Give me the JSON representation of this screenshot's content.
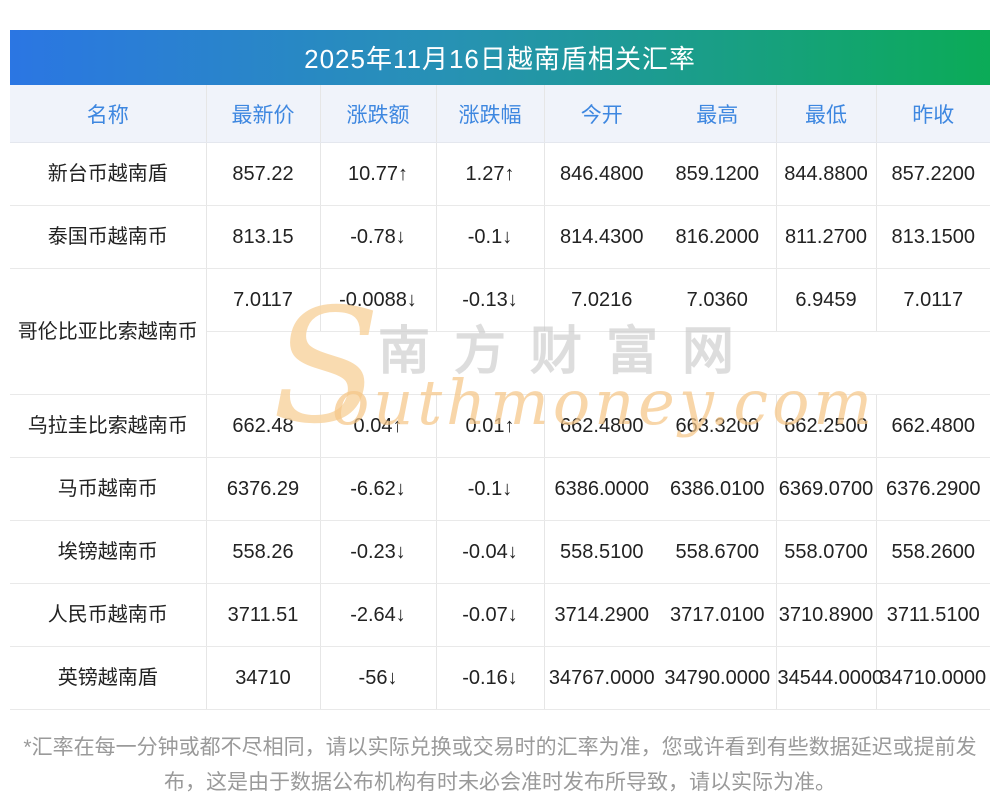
{
  "header": {
    "title": "2025年11月16日越南盾相关汇率"
  },
  "colors": {
    "gradient_start": "#2b76e3",
    "gradient_end": "#0bab57",
    "column_header_blue": "#3e87e0",
    "up_red": "#f72e2e",
    "down_green": "#109610"
  },
  "table": {
    "columns": [
      "名称",
      "最新价",
      "涨跌额",
      "涨跌幅",
      "今开",
      "最高",
      "最低",
      "昨收"
    ],
    "rows": [
      {
        "name": "新台币越南盾",
        "latest": "857.22",
        "change": "10.77↑",
        "change_pct": "1.27↑",
        "open": "846.4800",
        "high": "859.1200",
        "low": "844.8800",
        "prev_close": "857.2200",
        "trend": "up",
        "tall": false
      },
      {
        "name": "泰国币越南币",
        "latest": "813.15",
        "change": "-0.78↓",
        "change_pct": "-0.1↓",
        "open": "814.4300",
        "high": "816.2000",
        "low": "811.2700",
        "prev_close": "813.1500",
        "trend": "down",
        "tall": false
      },
      {
        "name": "哥伦比亚比索越南币",
        "latest": "7.0117",
        "change": "-0.0088↓",
        "change_pct": "-0.13↓",
        "open": "7.0216",
        "high": "7.0360",
        "low": "6.9459",
        "prev_close": "7.0117",
        "trend": "down",
        "tall": true
      },
      {
        "name": "乌拉圭比索越南币",
        "latest": "662.48",
        "change": "0.04↑",
        "change_pct": "0.01↑",
        "open": "662.4800",
        "high": "663.3200",
        "low": "662.2500",
        "prev_close": "662.4800",
        "trend": "up",
        "tall": false
      },
      {
        "name": "马币越南币",
        "latest": "6376.29",
        "change": "-6.62↓",
        "change_pct": "-0.1↓",
        "open": "6386.0000",
        "high": "6386.0100",
        "low": "6369.0700",
        "prev_close": "6376.2900",
        "trend": "down",
        "tall": false
      },
      {
        "name": "埃镑越南币",
        "latest": "558.26",
        "change": "-0.23↓",
        "change_pct": "-0.04↓",
        "open": "558.5100",
        "high": "558.6700",
        "low": "558.0700",
        "prev_close": "558.2600",
        "trend": "down",
        "tall": false
      },
      {
        "name": "人民币越南币",
        "latest": "3711.51",
        "change": "-2.64↓",
        "change_pct": "-0.07↓",
        "open": "3714.2900",
        "high": "3717.0100",
        "low": "3710.8900",
        "prev_close": "3711.5100",
        "trend": "down",
        "tall": false
      },
      {
        "name": "英镑越南盾",
        "latest": "34710",
        "change": "-56↓",
        "change_pct": "-0.16↓",
        "open": "34767.0000",
        "high": "34790.0000",
        "low": "34544.0000",
        "prev_close": "34710.0000",
        "trend": "down",
        "tall": false
      }
    ]
  },
  "watermark": {
    "initial": "S",
    "site_name_cn": "南方财富网",
    "site_domain": "outhmoney.com"
  },
  "footer": {
    "note": "*汇率在每一分钟或都不尽相同，请以实际兑换或交易时的汇率为准，您或许看到有些数据延迟或提前发布，这是由于数据公布机构有时未必会准时发布所导致，请以实际为准。"
  }
}
